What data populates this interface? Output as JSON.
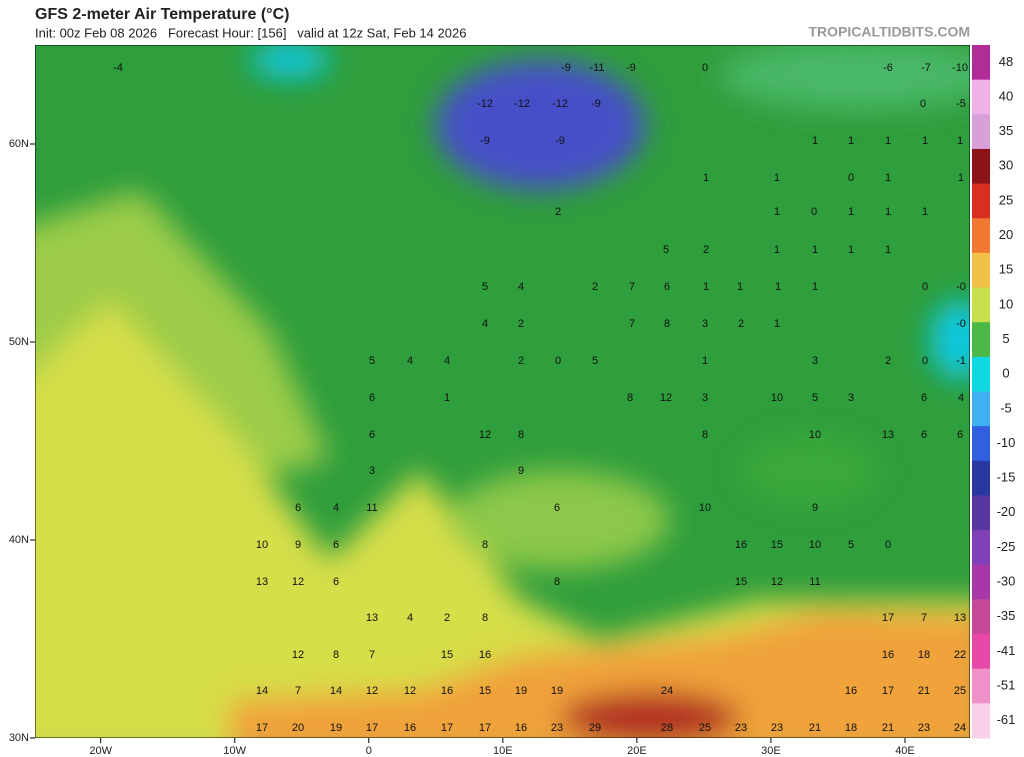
{
  "header": {
    "title": "GFS 2-meter Air Temperature (°C)",
    "subtitle": "Init: 00z Feb 08 2026   Forecast Hour: [156]   valid at 12z Sat, Feb 14 2026",
    "site": "TROPICALTIDBITS.COM"
  },
  "map": {
    "lon_ticks": [
      {
        "value": -20,
        "label": "20W"
      },
      {
        "value": -10,
        "label": "10W"
      },
      0,
      {
        "value": 10,
        "label": "10E"
      },
      {
        "value": 20,
        "label": "20E"
      },
      {
        "value": 30,
        "label": "30E"
      },
      {
        "value": 40,
        "label": "40E"
      }
    ],
    "lat_ticks": [
      {
        "value": 60,
        "label": "60N"
      },
      {
        "value": 50,
        "label": "50N"
      },
      {
        "value": 40,
        "label": "40N"
      },
      {
        "value": 30,
        "label": "30N"
      }
    ],
    "lon_range": [
      -24.9,
      44.85
    ],
    "lat_range": [
      30,
      65
    ],
    "labels": [
      "-4",
      "0",
      "-9",
      "-11",
      "-9",
      "-6",
      "-7",
      "-10",
      "-12",
      "-12",
      "-12",
      "-9",
      "0",
      "-5",
      "-9",
      "-9",
      "1",
      "1",
      "1",
      "1",
      "1",
      "1",
      "1",
      "0",
      "1",
      "1",
      "2",
      "1",
      "0",
      "1",
      "1",
      "1",
      "5",
      "2",
      "1",
      "1",
      "1",
      "1",
      "5",
      "4",
      "2",
      "7",
      "6",
      "1",
      "1",
      "1",
      "1",
      "0",
      "-0",
      "4",
      "2",
      "7",
      "8",
      "3",
      "2",
      "1",
      "-0",
      "5",
      "4",
      "4",
      "2",
      "0",
      "5",
      "1",
      "3",
      "2",
      "0",
      "-1",
      "6",
      "1",
      "8",
      "12",
      "3",
      "10",
      "5",
      "3",
      "6",
      "4",
      "6",
      "12",
      "8",
      "8",
      "10",
      "13",
      "6",
      "6",
      "3",
      "9",
      "6",
      "4",
      "11",
      "6",
      "10",
      "9",
      "10",
      "9",
      "6",
      "8",
      "16",
      "15",
      "10",
      "5",
      "0",
      "13",
      "12",
      "6",
      "8",
      "15",
      "12",
      "11",
      "13",
      "4",
      "2",
      "8",
      "17",
      "7",
      "13",
      "12",
      "8",
      "7",
      "15",
      "16",
      "16",
      "18",
      "22",
      "14",
      "7",
      "14",
      "12",
      "12",
      "16",
      "15",
      "19",
      "19",
      "24",
      "16",
      "17",
      "21",
      "25",
      "17",
      "20",
      "19",
      "17",
      "16",
      "17",
      "17",
      "16",
      "23",
      "29",
      "28",
      "25",
      "23",
      "23",
      "21",
      "18",
      "21",
      "23",
      "24"
    ]
  },
  "colorbar": {
    "levels": [
      48,
      40,
      35,
      30,
      25,
      20,
      15,
      10,
      5,
      0,
      -5,
      -10,
      -15,
      -20,
      -25,
      -30,
      -35,
      -41,
      -51,
      -61
    ],
    "colors": [
      "#b02c96",
      "#f0b0e8",
      "#d8a0d8",
      "#8c1418",
      "#d83020",
      "#f07830",
      "#f0c048",
      "#c8e050",
      "#4cb848",
      "#10d8e0",
      "#40b0f0",
      "#3060e0",
      "#2838a0",
      "#5838a0",
      "#8040b8",
      "#a838a8",
      "#c84898",
      "#e848a8",
      "#f090c8",
      "#f8d0e8"
    ]
  }
}
